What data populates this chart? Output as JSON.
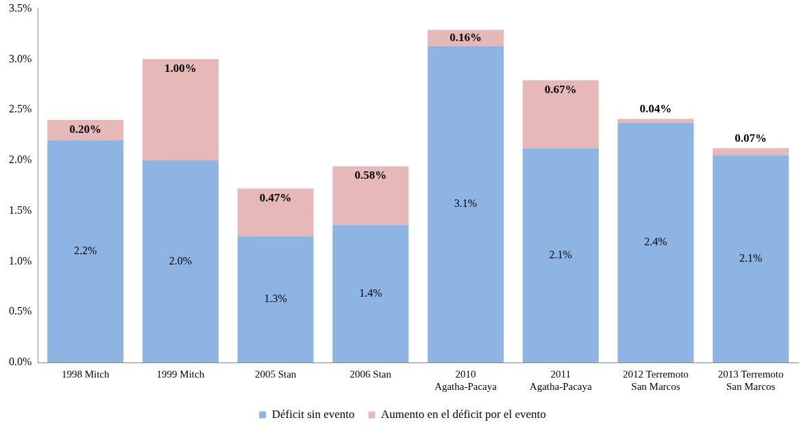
{
  "chart_data": {
    "type": "bar",
    "stacked": true,
    "categories": [
      "1998 Mitch",
      "1999 Mitch",
      "2005 Stan",
      "2006 Stan",
      "2010 Agatha-Pacaya",
      "2011 Agatha-Pacaya",
      "2012 Terremoto San Marcos",
      "2013 Terremoto San Marcos"
    ],
    "series": [
      {
        "name": "Déficit sin evento",
        "color": "#8db4e2",
        "values": [
          2.2,
          2.0,
          1.25,
          1.36,
          3.13,
          2.12,
          2.37,
          2.05
        ],
        "value_labels": [
          "2.2%",
          "2.0%",
          "1.3%",
          "1.4%",
          "3.1%",
          "2.1%",
          "2.4%",
          "2.1%"
        ]
      },
      {
        "name": "Aumento en el déficit por el evento",
        "color": "#e6b9b8",
        "values": [
          0.2,
          1.0,
          0.47,
          0.58,
          0.16,
          0.67,
          0.04,
          0.07
        ],
        "value_labels": [
          "0.20%",
          "1.00%",
          "0.47%",
          "0.58%",
          "0.16%",
          "0.67%",
          "0.04%",
          "0.07%"
        ]
      }
    ],
    "ylim": [
      0,
      3.5
    ],
    "yticks": [
      {
        "value": 0,
        "label": "0.0%"
      },
      {
        "value": 0.5,
        "label": "0.5%"
      },
      {
        "value": 1,
        "label": "1.0%"
      },
      {
        "value": 1.5,
        "label": "1.5%"
      },
      {
        "value": 2,
        "label": "2.0%"
      },
      {
        "value": 2.5,
        "label": "2.5%"
      },
      {
        "value": 3,
        "label": "3.0%"
      },
      {
        "value": 3.5,
        "label": "3.5%"
      }
    ],
    "grid": false,
    "legend": "bottom"
  }
}
